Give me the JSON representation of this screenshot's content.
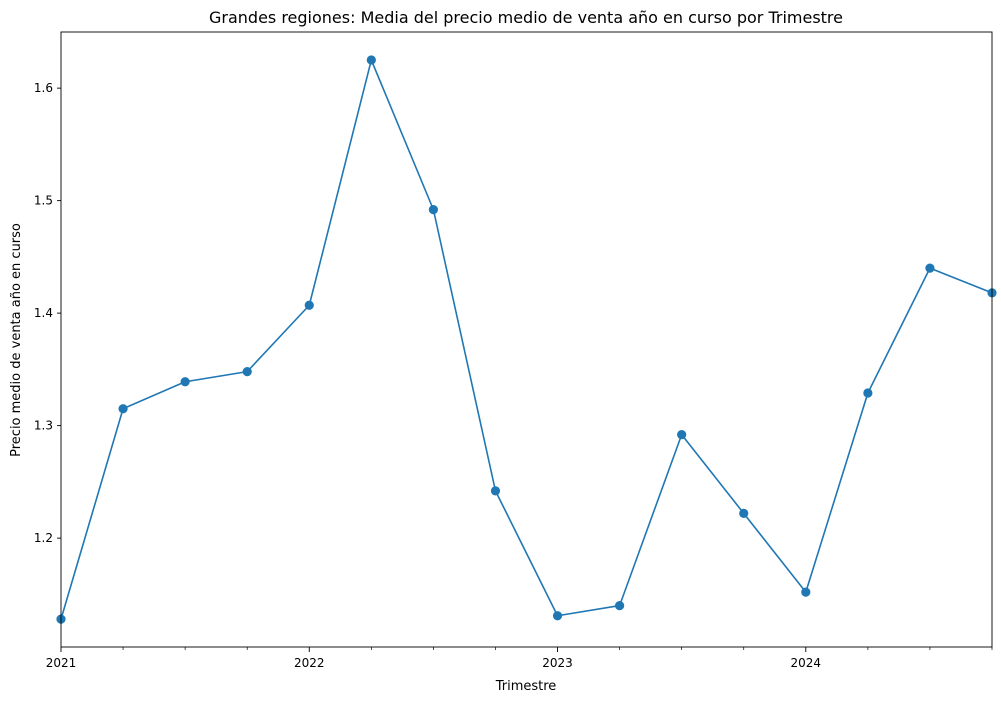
{
  "chart_data": {
    "type": "line",
    "title": "Grandes regiones: Media del precio medio de venta año en curso por Trimestre",
    "xlabel": "Trimestre",
    "ylabel": "Precio medio de venta año en curso",
    "x": [
      "2021Q1",
      "2021Q2",
      "2021Q3",
      "2021Q4",
      "2022Q1",
      "2022Q2",
      "2022Q3",
      "2022Q4",
      "2023Q1",
      "2023Q2",
      "2023Q3",
      "2023Q4",
      "2024Q1",
      "2024Q2",
      "2024Q3",
      "2024Q4"
    ],
    "values": [
      1.128,
      1.315,
      1.339,
      1.348,
      1.407,
      1.625,
      1.492,
      1.242,
      1.131,
      1.14,
      1.292,
      1.222,
      1.152,
      1.329,
      1.44,
      1.418
    ],
    "x_tick_labels": [
      "2021",
      "2022",
      "2023",
      "2024"
    ],
    "y_ticks": [
      1.2,
      1.3,
      1.4,
      1.5,
      1.6
    ],
    "y_tick_labels": [
      "1.2",
      "1.3",
      "1.4",
      "1.5",
      "1.6"
    ],
    "ylim": [
      1.1032,
      1.6499
    ],
    "grid": false,
    "line_color": "#1f77b4",
    "marker": "circle"
  }
}
